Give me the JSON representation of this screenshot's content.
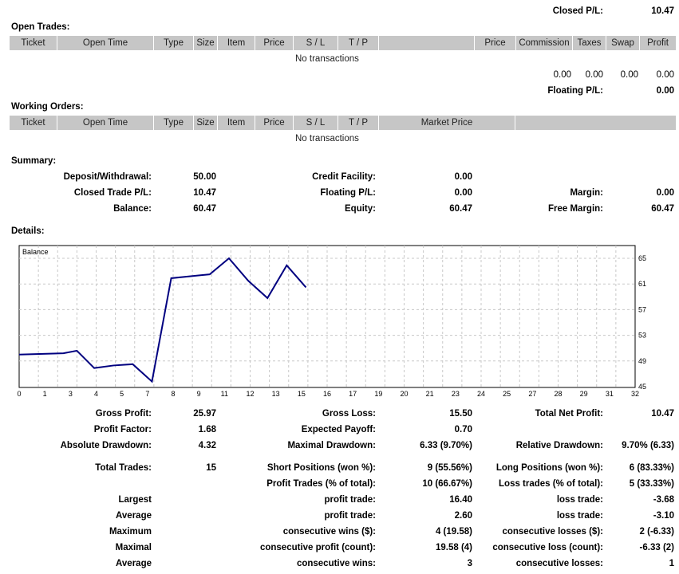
{
  "closed_pl": {
    "label": "Closed P/L:",
    "value": "10.47"
  },
  "open_trades": {
    "title": "Open Trades:",
    "columns": [
      "Ticket",
      "Open Time",
      "Type",
      "Size",
      "Item",
      "Price",
      "S / L",
      "T / P",
      "",
      "Price",
      "Commission",
      "Taxes",
      "Swap",
      "Profit"
    ],
    "empty_text": "No transactions",
    "totals": [
      "0.00",
      "0.00",
      "0.00",
      "0.00"
    ],
    "floating_label": "Floating P/L:",
    "floating_value": "0.00"
  },
  "working_orders": {
    "title": "Working Orders:",
    "columns": [
      "Ticket",
      "Open Time",
      "Type",
      "Size",
      "Item",
      "Price",
      "S / L",
      "T / P",
      "Market Price",
      ""
    ],
    "empty_text": "No transactions"
  },
  "summary": {
    "title": "Summary:",
    "rows": [
      [
        [
          "Deposit/Withdrawal:",
          "50.00"
        ],
        [
          "Credit Facility:",
          "0.00"
        ],
        [
          "",
          ""
        ]
      ],
      [
        [
          "Closed Trade P/L:",
          "10.47"
        ],
        [
          "Floating P/L:",
          "0.00"
        ],
        [
          "Margin:",
          "0.00"
        ]
      ],
      [
        [
          "Balance:",
          "60.47"
        ],
        [
          "Equity:",
          "60.47"
        ],
        [
          "Free Margin:",
          "60.47"
        ]
      ]
    ]
  },
  "details": {
    "title": "Details:"
  },
  "chart_data": {
    "type": "line",
    "title": "Balance",
    "series": [
      {
        "name": "Balance",
        "color": "#000080",
        "x": [
          0,
          2.3,
          3.0,
          3.9,
          4.9,
          5.9,
          6.9,
          7.9,
          9.9,
          10.9,
          11.9,
          12.9,
          13.9,
          14.9
        ],
        "y": [
          50.0,
          50.2,
          50.6,
          47.9,
          48.3,
          48.5,
          45.8,
          61.9,
          62.5,
          65.0,
          61.5,
          58.8,
          63.9,
          60.47
        ]
      }
    ],
    "xlim": [
      0,
      32
    ],
    "ylim": [
      45,
      67
    ],
    "x_tick_labels": [
      "0",
      "1",
      "3",
      "4",
      "5",
      "7",
      "8",
      "9",
      "11",
      "12",
      "13",
      "15",
      "16",
      "17",
      "19",
      "20",
      "21",
      "23",
      "24",
      "25",
      "27",
      "28",
      "29",
      "31",
      "32"
    ],
    "y_ticks": [
      45,
      49,
      53,
      57,
      61,
      65
    ],
    "grid": true
  },
  "stats": {
    "rows": [
      [
        [
          "Gross Profit:",
          "25.97"
        ],
        [
          "Gross Loss:",
          "15.50"
        ],
        [
          "Total Net Profit:",
          "10.47"
        ]
      ],
      [
        [
          "Profit Factor:",
          "1.68"
        ],
        [
          "Expected Payoff:",
          "0.70"
        ],
        [
          "",
          ""
        ]
      ],
      [
        [
          "Absolute Drawdown:",
          "4.32"
        ],
        [
          "Maximal Drawdown:",
          "6.33 (9.70%)"
        ],
        [
          "Relative Drawdown:",
          "9.70% (6.33)"
        ]
      ],
      [
        [
          "Total Trades:",
          "15"
        ],
        [
          "Short Positions (won %):",
          "9 (55.56%)"
        ],
        [
          "Long Positions (won %):",
          "6 (83.33%)"
        ]
      ],
      [
        [
          "",
          ""
        ],
        [
          "Profit Trades (% of total):",
          "10 (66.67%)"
        ],
        [
          "Loss trades (% of total):",
          "5 (33.33%)"
        ]
      ],
      [
        [
          "Largest",
          ""
        ],
        [
          "profit trade:",
          "16.40"
        ],
        [
          "loss trade:",
          "-3.68"
        ]
      ],
      [
        [
          "Average",
          ""
        ],
        [
          "profit trade:",
          "2.60"
        ],
        [
          "loss trade:",
          "-3.10"
        ]
      ],
      [
        [
          "Maximum",
          ""
        ],
        [
          "consecutive wins ($):",
          "4 (19.58)"
        ],
        [
          "consecutive losses ($):",
          "2 (-6.33)"
        ]
      ],
      [
        [
          "Maximal",
          ""
        ],
        [
          "consecutive profit (count):",
          "19.58 (4)"
        ],
        [
          "consecutive loss (count):",
          "-6.33 (2)"
        ]
      ],
      [
        [
          "Average",
          ""
        ],
        [
          "consecutive wins:",
          "3"
        ],
        [
          "consecutive losses:",
          "1"
        ]
      ]
    ]
  }
}
